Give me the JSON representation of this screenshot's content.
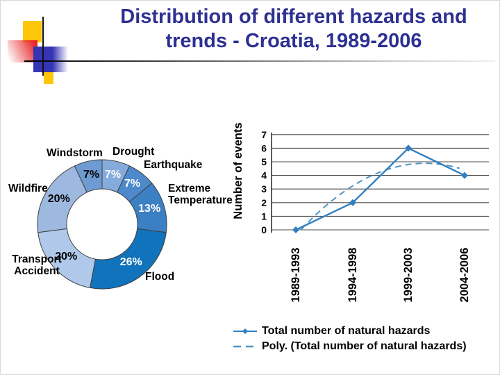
{
  "slide": {
    "title_line1": "Distribution of different hazards and",
    "title_line2": "trends - Croatia, 1989-2006",
    "title_color": "#2d3092"
  },
  "chart_data": [
    {
      "type": "pie",
      "subtype": "donut",
      "direction": "clockwise",
      "start_angle_deg": 0,
      "outline_color": "#3f3f3f",
      "segments": [
        {
          "label": "Drought",
          "value": 7,
          "pct_label": "7%",
          "color": "#85abdc",
          "pct_label_color": "#ffffff"
        },
        {
          "label": "Earthquake",
          "value": 7,
          "pct_label": "7%",
          "color": "#4d89cb",
          "pct_label_color": "#ffffff"
        },
        {
          "label": "Extreme Temperature",
          "value": 13,
          "pct_label": "13%",
          "color": "#3c80c4",
          "pct_label_color": "#ffffff"
        },
        {
          "label": "Flood",
          "value": 26,
          "pct_label": "26%",
          "color": "#1173bb",
          "pct_label_color": "#ffffff"
        },
        {
          "label": "Transport Accident",
          "value": 20,
          "pct_label": "20%",
          "color": "#b0c9ea",
          "pct_label_color": "#000000"
        },
        {
          "label": "Wildfire",
          "value": 20,
          "pct_label": "20%",
          "color": "#9db9e0",
          "pct_label_color": "#000000"
        },
        {
          "label": "Windstorm",
          "value": 7,
          "pct_label": "7%",
          "color": "#6f9bd3",
          "pct_label_color": "#000000"
        }
      ]
    },
    {
      "type": "line",
      "categories": [
        "1989-1993",
        "1994-1998",
        "1999-2003",
        "2004-2006"
      ],
      "series": [
        {
          "name": "Total number of natural hazards",
          "values": [
            0,
            2,
            6,
            4
          ],
          "color": "#2f7fc1",
          "marker": "diamond"
        }
      ],
      "trendline": {
        "name": "Poly. (Total number of natural hazards)",
        "kind": "polynomial",
        "order": 2,
        "coefficients": [
          -0.4,
          4.6,
          -1
        ],
        "approx_values": [
          0,
          3.1,
          4.9,
          4.4
        ],
        "color": "#4f93c4",
        "style": "dashed"
      },
      "ylabel": "Number of events",
      "ylim": [
        0,
        7
      ],
      "ytick_step": 1,
      "grid": true,
      "gridline_color": "#4d4d4d",
      "axis_color": "#333333"
    }
  ],
  "legend": {
    "items": [
      {
        "label": "Total number of natural hazards",
        "marker": "solid-line-diamond"
      },
      {
        "label": "Poly. (Total number of natural hazards)",
        "marker": "dashed-line"
      }
    ]
  }
}
